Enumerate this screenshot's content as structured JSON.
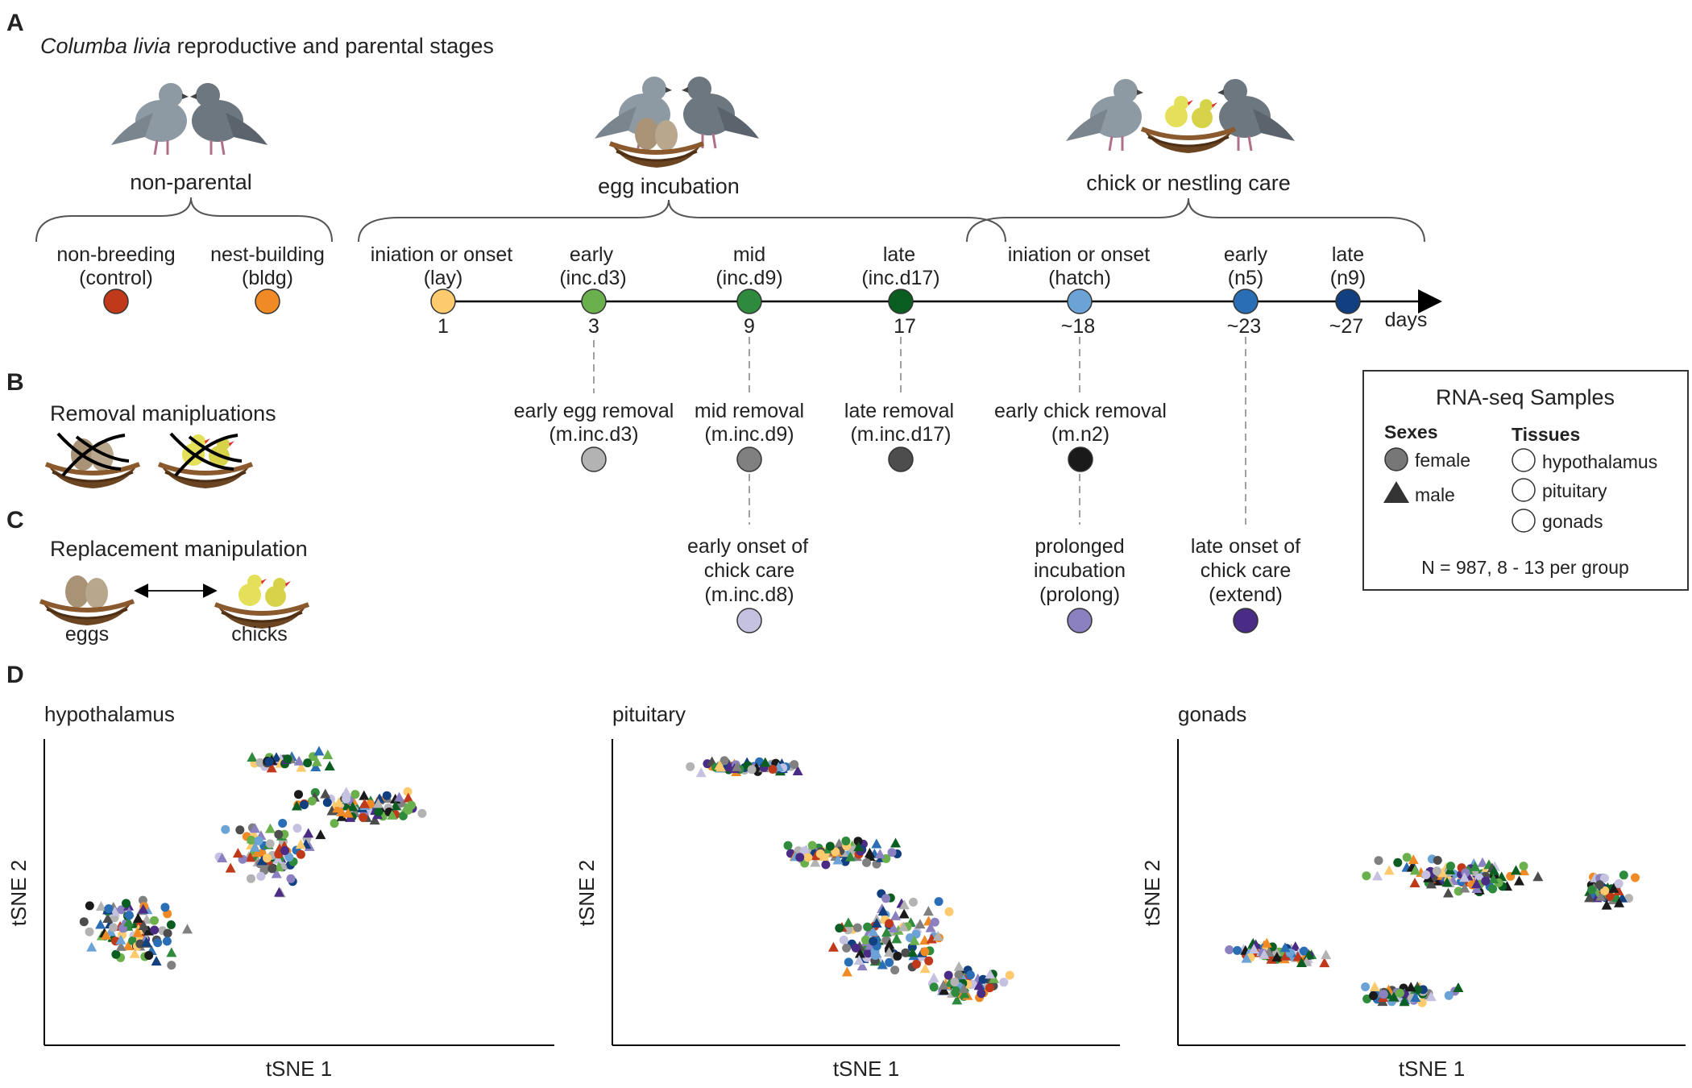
{
  "panels": {
    "A": "A",
    "B": "B",
    "C": "C",
    "D": "D"
  },
  "panel_a": {
    "title_italic": "Columba livia",
    "title_rest": " reproductive and parental stages",
    "groups": [
      "non-parental",
      "egg incubation",
      "chick or nestling care"
    ],
    "axis_unit": "days",
    "colors": {
      "control": "#c0391b",
      "bldg": "#f08a24",
      "lay": "#fdcb6e",
      "inc_d3": "#6ab04c",
      "inc_d9": "#2e8b3d",
      "inc_d17": "#0b5e22",
      "hatch": "#6ba3d6",
      "n5": "#2a6fb5",
      "n9": "#123f80"
    },
    "stages": [
      {
        "line1": "non-breeding",
        "line2": "(control)"
      },
      {
        "line1": "nest-building",
        "line2": "(bldg)"
      },
      {
        "line1": "iniation or onset",
        "line2": "(lay)",
        "day": "1"
      },
      {
        "line1": "early",
        "line2": "(inc.d3)",
        "day": "3"
      },
      {
        "line1": "mid",
        "line2": "(inc.d9)",
        "day": "9"
      },
      {
        "line1": "late",
        "line2": "(inc.d17)",
        "day": "17"
      },
      {
        "line1": "iniation or onset",
        "line2": "(hatch)",
        "day": "~18"
      },
      {
        "line1": "early",
        "line2": "(n5)",
        "day": "~23"
      },
      {
        "line1": "late",
        "line2": "(n9)",
        "day": "~27"
      }
    ]
  },
  "panel_b": {
    "title": "Removal manipluations",
    "items": [
      {
        "line1": "early egg removal",
        "line2": "(m.inc.d3)",
        "color": "#b3b3b3"
      },
      {
        "line1": "mid removal",
        "line2": "(m.inc.d9)",
        "color": "#808080"
      },
      {
        "line1": "late removal",
        "line2": "(m.inc.d17)",
        "color": "#4d4d4d"
      },
      {
        "line1": "early chick removal",
        "line2": "(m.n2)",
        "color": "#1a1a1a"
      }
    ]
  },
  "panel_c": {
    "title": "Replacement manipulation",
    "eggs_label": "eggs",
    "chicks_label": "chicks",
    "items": [
      {
        "line1": "early onset of",
        "line2": "chick care",
        "line3": "(m.inc.d8)",
        "color": "#c5c1e0"
      },
      {
        "line1": "prolonged",
        "line2": "incubation",
        "line3": "(prolong)",
        "color": "#8b80c0"
      },
      {
        "line1": "late onset of",
        "line2": "chick care",
        "line3": "(extend)",
        "color": "#4a2c86"
      }
    ]
  },
  "legend": {
    "title": "RNA-seq Samples",
    "sexes_title": "Sexes",
    "female": "female",
    "male": "male",
    "tissues_title": "Tissues",
    "tissues": [
      "hypothalamus",
      "pituitary",
      "gonads"
    ],
    "n_text": "N = 987, 8 - 13 per group"
  },
  "chart_data": [
    {
      "type": "scatter",
      "title": "hypothalamus",
      "xlabel": "tSNE 1",
      "ylabel": "tSNE 2",
      "n_points_approx": 320
    },
    {
      "type": "scatter",
      "title": "pituitary",
      "xlabel": "tSNE 1",
      "ylabel": "tSNE 2",
      "n_points_approx": 320
    },
    {
      "type": "scatter",
      "title": "gonads",
      "xlabel": "tSNE 1",
      "ylabel": "tSNE 2",
      "n_points_approx": 320
    }
  ]
}
